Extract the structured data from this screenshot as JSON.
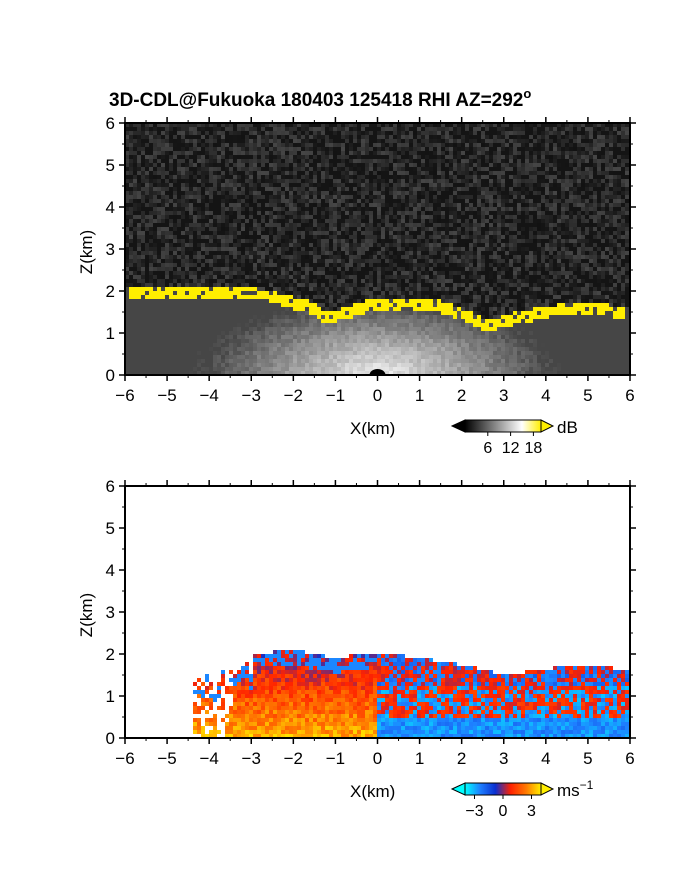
{
  "title_main": "3D-CDL@Fukuoka 180403 125418 RHI AZ=292",
  "title_degree": "o",
  "chart_data": [
    {
      "type": "heatmap",
      "name": "reflectivity-snr",
      "xlabel": "X(km)",
      "ylabel": "Z(km)",
      "xlim": [
        -6,
        6
      ],
      "ylim": [
        0,
        6
      ],
      "xticks": [
        "-6",
        "-5",
        "-4",
        "-3",
        "-2",
        "-1",
        "0",
        "1",
        "2",
        "3",
        "4",
        "5",
        "6"
      ],
      "yticks": [
        "0",
        "1",
        "2",
        "3",
        "4",
        "5",
        "6"
      ],
      "colorbar": {
        "unit": "dB",
        "ticks": [
          "6",
          "12",
          "18"
        ],
        "tick_values": [
          6,
          12,
          18
        ],
        "range": [
          0,
          20
        ],
        "colors": [
          "#000000",
          "#555555",
          "#aaaaaa",
          "#ffffff",
          "#ffee00"
        ]
      },
      "features": {
        "cloud_top_km": [
          [
            -2.8,
            2.1
          ],
          [
            -2.2,
            1.9
          ],
          [
            -1.6,
            1.75
          ],
          [
            -1.2,
            1.5
          ],
          [
            -0.6,
            1.65
          ],
          [
            0.0,
            1.85
          ],
          [
            0.6,
            1.85
          ],
          [
            1.2,
            1.8
          ],
          [
            1.6,
            1.75
          ],
          [
            2.0,
            1.6
          ],
          [
            2.6,
            1.3
          ],
          [
            3.3,
            1.5
          ],
          [
            3.9,
            1.6
          ],
          [
            4.4,
            1.7
          ],
          [
            5.0,
            1.75
          ],
          [
            6.0,
            1.6
          ]
        ],
        "bright_cap_color": "#ffee00"
      }
    },
    {
      "type": "heatmap",
      "name": "doppler-velocity",
      "xlabel": "X(km)",
      "ylabel": "Z(km)",
      "xlim": [
        -6,
        6
      ],
      "ylim": [
        0,
        6
      ],
      "xticks": [
        "-6",
        "-5",
        "-4",
        "-3",
        "-2",
        "-1",
        "0",
        "1",
        "2",
        "3",
        "4",
        "5",
        "6"
      ],
      "yticks": [
        "0",
        "1",
        "2",
        "3",
        "4",
        "5",
        "6"
      ],
      "colorbar": {
        "unit": "ms",
        "unit_exp": "−1",
        "ticks": [
          "−3",
          "0",
          "3"
        ],
        "tick_values": [
          -3,
          0,
          3
        ],
        "range": [
          -4,
          4
        ],
        "colors": [
          "#00ffff",
          "#1e7fff",
          "#0a2fd0",
          "#ff2200",
          "#ff7700",
          "#ffee00"
        ]
      },
      "features": {
        "echo_top_km": [
          [
            -4.0,
            1.6
          ],
          [
            -3.0,
            2.0
          ],
          [
            -2.0,
            2.1
          ],
          [
            -1.0,
            1.9
          ],
          [
            0.0,
            2.05
          ],
          [
            1.0,
            1.9
          ],
          [
            2.0,
            1.75
          ],
          [
            3.0,
            1.5
          ],
          [
            4.0,
            1.65
          ],
          [
            5.0,
            1.75
          ],
          [
            6.0,
            1.6
          ]
        ],
        "note_pattern": "warm (positive) velocities to the left of X=0, cold (negative) to the right near the surface"
      }
    }
  ]
}
